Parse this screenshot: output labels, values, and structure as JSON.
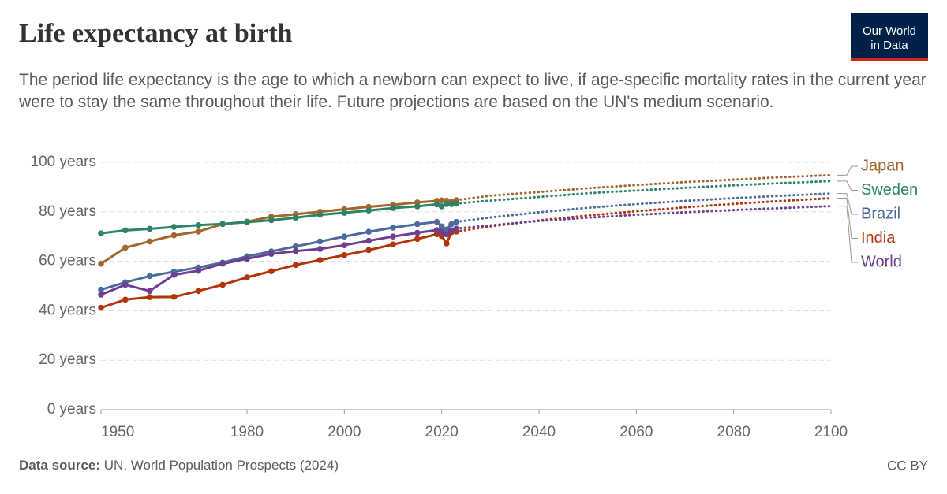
{
  "title": "Life expectancy at birth",
  "subtitle": "The period life expectancy is the age to which a newborn can expect to live, if age-specific mortality rates in the current year were to stay the same throughout their life. Future projections are based on the UN's medium scenario.",
  "logo": [
    "Our World",
    "in Data"
  ],
  "source_label": "Data source:",
  "source": "UN, World Population Prospects (2024)",
  "license": "CC BY",
  "chart_data": {
    "type": "line",
    "x": [
      1950,
      1955,
      1960,
      1965,
      1970,
      1975,
      1980,
      1985,
      1990,
      1995,
      2000,
      2005,
      2010,
      2015,
      2019,
      2020,
      2021,
      2022,
      2023
    ],
    "x_projection": [
      2023,
      2030,
      2040,
      2050,
      2060,
      2070,
      2080,
      2090,
      2100
    ],
    "xlim": [
      1950,
      2100
    ],
    "xticks": [
      1950,
      1980,
      2000,
      2020,
      2040,
      2060,
      2080,
      2100
    ],
    "ylim": [
      0,
      100
    ],
    "yticks": [
      {
        "value": 0,
        "label": "0 years"
      },
      {
        "value": 20,
        "label": "20 years"
      },
      {
        "value": 40,
        "label": "40 years"
      },
      {
        "value": 60,
        "label": "60 years"
      },
      {
        "value": 80,
        "label": "80 years"
      },
      {
        "value": 100,
        "label": "100 years"
      }
    ],
    "grid": true,
    "series": [
      {
        "name": "Japan",
        "color": "#a2662f",
        "values": [
          59,
          65.5,
          68,
          70.5,
          72,
          75,
          76,
          78,
          79,
          80,
          81,
          82,
          82.8,
          83.8,
          84.4,
          84.6,
          84.5,
          84,
          84.7
        ],
        "projection_values": [
          84.7,
          86.5,
          88,
          89.5,
          90.8,
          92,
          93,
          94,
          94.8
        ]
      },
      {
        "name": "Sweden",
        "color": "#2c8465",
        "values": [
          71.3,
          72.5,
          73.1,
          73.9,
          74.6,
          75.1,
          75.8,
          76.6,
          77.6,
          78.8,
          79.6,
          80.5,
          81.5,
          82.2,
          83,
          82.2,
          83.1,
          83.1,
          83.3
        ],
        "projection_values": [
          83.3,
          84.5,
          86,
          87.5,
          88.6,
          89.7,
          90.7,
          91.6,
          92.4
        ]
      },
      {
        "name": "Brazil",
        "color": "#4c6a9c",
        "values": [
          48.5,
          51.5,
          54,
          55.8,
          57.5,
          59.5,
          62,
          64,
          66,
          68,
          70,
          71.9,
          73.6,
          75,
          75.9,
          74.1,
          72.8,
          75,
          75.9
        ],
        "projection_values": [
          75.9,
          77.7,
          79.8,
          81.6,
          83.1,
          84.4,
          85.5,
          86.5,
          87.4
        ]
      },
      {
        "name": "India",
        "color": "#b13507",
        "values": [
          41.2,
          44.5,
          45.5,
          45.6,
          48,
          50.5,
          53.5,
          56,
          58.5,
          60.5,
          62.5,
          64.5,
          66.8,
          69,
          70.9,
          70.2,
          67.2,
          71.7,
          72
        ],
        "projection_values": [
          72,
          74.1,
          76.5,
          78.5,
          80.2,
          81.8,
          83.2,
          84.4,
          85.5
        ]
      },
      {
        "name": "World",
        "color": "#6d3e91",
        "values": [
          46.5,
          50.5,
          48,
          54.5,
          56.2,
          59,
          61,
          63,
          64.1,
          65,
          66.5,
          68.3,
          70,
          71.5,
          72.6,
          72,
          70.9,
          72.5,
          73.2
        ],
        "projection_values": [
          73.2,
          74.5,
          76.3,
          77.6,
          78.8,
          79.8,
          80.7,
          81.5,
          82.3
        ]
      }
    ]
  }
}
